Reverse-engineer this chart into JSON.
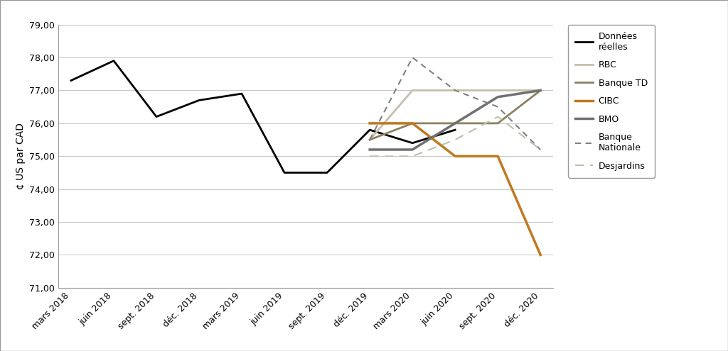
{
  "ylabel": "¢ US par CAD",
  "ylim": [
    71.0,
    79.0
  ],
  "yticks": [
    71.0,
    72.0,
    73.0,
    74.0,
    75.0,
    76.0,
    77.0,
    78.0,
    79.0
  ],
  "ytick_labels": [
    "71,00",
    "72,00",
    "73,00",
    "74,00",
    "75,00",
    "76,00",
    "77,00",
    "78,00",
    "79,00"
  ],
  "xtick_labels": [
    "mars 2018",
    "juin 2018",
    "sept. 2018",
    "déc. 2018",
    "mars 2019",
    "juin 2019",
    "sept. 2019",
    "déc. 2019",
    "mars 2020",
    "juin 2020",
    "sept. 2020",
    "déc. 2020"
  ],
  "donnees_reelles": {
    "x": [
      0,
      1,
      2,
      3,
      4,
      5,
      6,
      7,
      8,
      9
    ],
    "y": [
      77.3,
      77.9,
      76.2,
      76.7,
      76.9,
      74.5,
      74.5,
      75.8,
      75.4,
      75.8
    ],
    "color": "#000000",
    "linewidth": 2.0,
    "linestyle": "-",
    "label": "Données\nréelles"
  },
  "rbc": {
    "x": [
      7,
      8,
      9,
      10,
      11
    ],
    "y": [
      75.5,
      77.0,
      77.0,
      77.0,
      77.0
    ],
    "color": "#c8bfa8",
    "linewidth": 2.0,
    "linestyle": "-",
    "label": "RBC"
  },
  "banque_td": {
    "x": [
      7,
      8,
      9,
      10,
      11
    ],
    "y": [
      75.5,
      76.0,
      76.0,
      76.0,
      77.0
    ],
    "color": "#8b8060",
    "linewidth": 2.0,
    "linestyle": "-",
    "label": "Banque TD"
  },
  "cibc": {
    "x": [
      7,
      8,
      9,
      10,
      11
    ],
    "y": [
      76.0,
      76.0,
      75.0,
      75.0,
      72.0
    ],
    "color": "#c07820",
    "linewidth": 2.5,
    "linestyle": "-",
    "label": "CIBC"
  },
  "bmo": {
    "x": [
      7,
      8,
      9,
      10,
      11
    ],
    "y": [
      75.2,
      75.2,
      76.0,
      76.8,
      77.0
    ],
    "color": "#707070",
    "linewidth": 2.5,
    "linestyle": "-",
    "label": "BMO"
  },
  "banque_nationale": {
    "x": [
      7,
      8,
      9,
      10,
      11
    ],
    "y": [
      75.5,
      78.0,
      77.0,
      76.5,
      75.2
    ],
    "color": "#808080",
    "linewidth": 1.5,
    "linestyle": "--",
    "dashes": [
      4,
      3
    ],
    "label": "Banque\nNationale"
  },
  "desjardins": {
    "x": [
      7,
      8,
      9,
      10,
      11
    ],
    "y": [
      75.0,
      75.0,
      75.5,
      76.2,
      75.2
    ],
    "color": "#c0c0b0",
    "linewidth": 1.5,
    "linestyle": "--",
    "dashes": [
      6,
      4
    ],
    "label": "Desjardins"
  },
  "background_color": "#ffffff",
  "grid_color": "#bbbbbb",
  "spine_color": "#999999"
}
